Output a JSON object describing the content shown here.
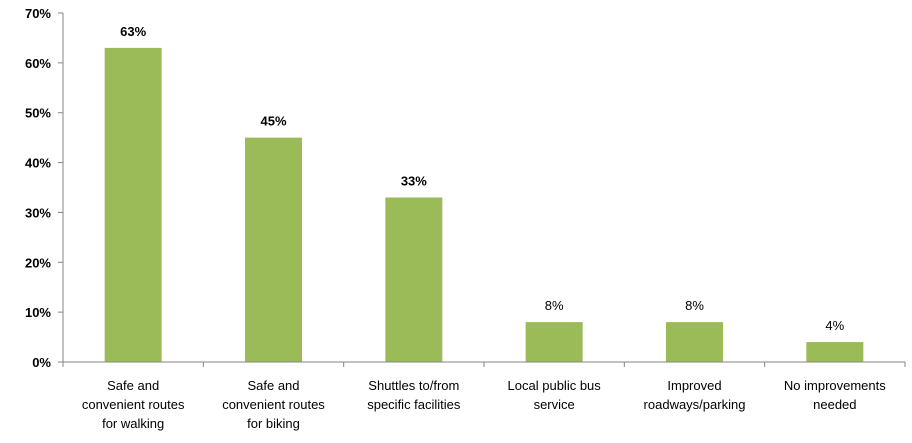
{
  "chart_data": {
    "type": "bar",
    "categories": [
      [
        "Safe and",
        "convenient routes",
        "for walking"
      ],
      [
        "Safe and",
        "convenient routes",
        "for biking"
      ],
      [
        "Shuttles to/from",
        "specific facilities"
      ],
      [
        "Local public bus",
        "service"
      ],
      [
        "Improved",
        "roadways/parking"
      ],
      [
        "No improvements",
        "needed"
      ]
    ],
    "values": [
      63,
      45,
      33,
      8,
      8,
      4
    ],
    "data_labels": [
      "63%",
      "45%",
      "33%",
      "8%",
      "8%",
      "4%"
    ],
    "bold_labels": [
      true,
      true,
      true,
      false,
      false,
      false
    ],
    "y_ticks": [
      0,
      10,
      20,
      30,
      40,
      50,
      60,
      70
    ],
    "y_tick_labels": [
      "0%",
      "10%",
      "20%",
      "30%",
      "40%",
      "50%",
      "60%",
      "70%"
    ],
    "ylim": [
      0,
      70
    ],
    "title": "",
    "xlabel": "",
    "ylabel": "",
    "grid": false,
    "legend": "none",
    "bar_color": "#9BBB59",
    "axis_color": "#868686"
  }
}
